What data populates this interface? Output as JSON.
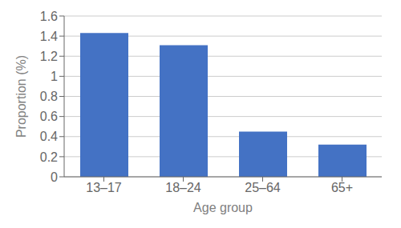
{
  "chart_data": {
    "type": "bar",
    "categories": [
      "13–17",
      "18–24",
      "25–64",
      "65+"
    ],
    "values": [
      1.43,
      1.31,
      0.45,
      0.32
    ],
    "color": "#4472c4",
    "xlabel": "Age group",
    "ylabel": "Proportion (%)",
    "ylim": [
      0,
      1.6
    ],
    "yticks": [
      0,
      0.2,
      0.4,
      0.6,
      0.8,
      1,
      1.2,
      1.4,
      1.6
    ],
    "grid": true
  }
}
